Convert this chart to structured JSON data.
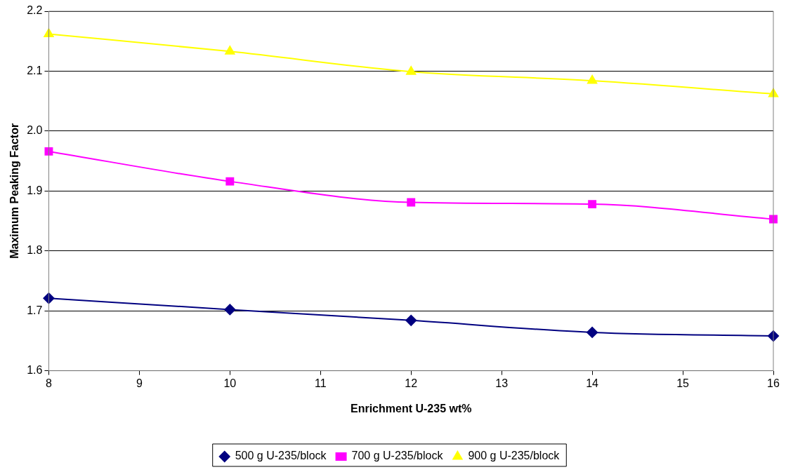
{
  "chart_data": {
    "type": "line",
    "xlabel": "Enrichment U-235 wt%",
    "ylabel": "Maximum Peaking Factor",
    "x": [
      8,
      10,
      12,
      14,
      16
    ],
    "series": [
      {
        "name": "500 g U-235/block",
        "color": "#000080",
        "marker": "diamond",
        "values": [
          1.721,
          1.702,
          1.684,
          1.664,
          1.658
        ]
      },
      {
        "name": "700 g U-235/block",
        "color": "#ff00ff",
        "marker": "square",
        "values": [
          1.966,
          1.916,
          1.881,
          1.878,
          1.853
        ]
      },
      {
        "name": "900 g U-235/block",
        "color": "#ffff00",
        "marker": "triangle",
        "values": [
          2.162,
          2.133,
          2.099,
          2.084,
          2.062
        ]
      }
    ],
    "xlim": [
      8,
      16
    ],
    "xticks": [
      8,
      9,
      10,
      11,
      12,
      13,
      14,
      15,
      16
    ],
    "ylim": [
      1.6,
      2.2
    ],
    "yticks": [
      {
        "value": 1.6,
        "label": "1.6"
      },
      {
        "value": 1.7,
        "label": "1.7"
      },
      {
        "value": 1.8,
        "label": "1.8"
      },
      {
        "value": 1.9,
        "label": "1.9"
      },
      {
        "value": 2.0,
        "label": "2.0"
      },
      {
        "value": 2.1,
        "label": "2.1"
      },
      {
        "value": 2.2,
        "label": "2.2"
      }
    ],
    "grid": "y",
    "legend": "bottom",
    "line_style": "solid"
  }
}
